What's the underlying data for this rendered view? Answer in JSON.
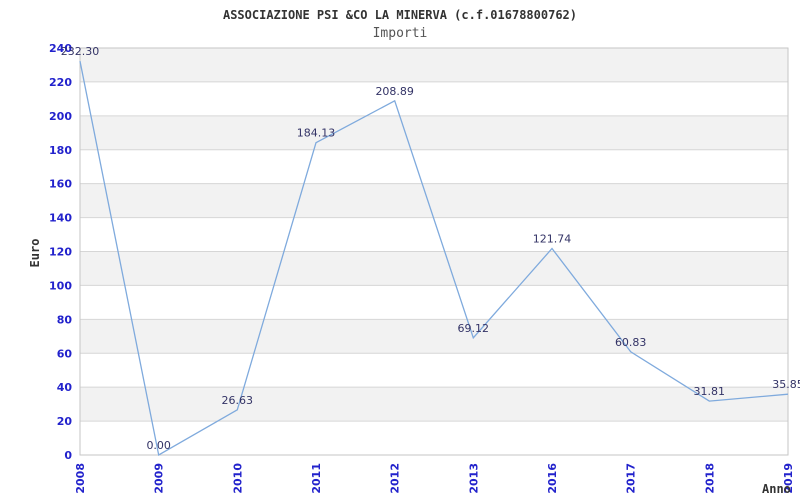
{
  "chart_data": {
    "type": "line",
    "title": "ASSOCIAZIONE PSI &CO LA MINERVA (c.f.01678800762)",
    "subtitle": "Importi",
    "xlabel": "Anno",
    "ylabel": "Euro",
    "categories": [
      "2008",
      "2009",
      "2010",
      "2011",
      "2012",
      "2013",
      "2016",
      "2017",
      "2018",
      "2019"
    ],
    "values": [
      232.3,
      0.0,
      26.63,
      184.13,
      208.89,
      69.12,
      121.74,
      60.83,
      31.81,
      35.85
    ],
    "point_labels": [
      "232.30",
      "0.00",
      "26.63",
      "184.13",
      "208.89",
      "69.12",
      "121.74",
      "60.83",
      "31.81",
      "35.85"
    ],
    "series_name": "Importi",
    "ylim": [
      0,
      240
    ],
    "ytick_step": 20,
    "yticks": [
      0,
      20,
      40,
      60,
      80,
      100,
      120,
      140,
      160,
      180,
      200,
      220,
      240
    ],
    "grid": "horizontal, alternating shaded bands every 20 units",
    "legend": "none",
    "colors": {
      "line": "#7faadd",
      "tick_label": "#2222cc",
      "point_label": "#333366",
      "band": "#f2f2f2",
      "gridline": "#d6d6d6",
      "border": "#c6c6c6",
      "title": "#333333",
      "subtitle": "#555555",
      "axis_title": "#333333",
      "background": "#ffffff"
    }
  }
}
